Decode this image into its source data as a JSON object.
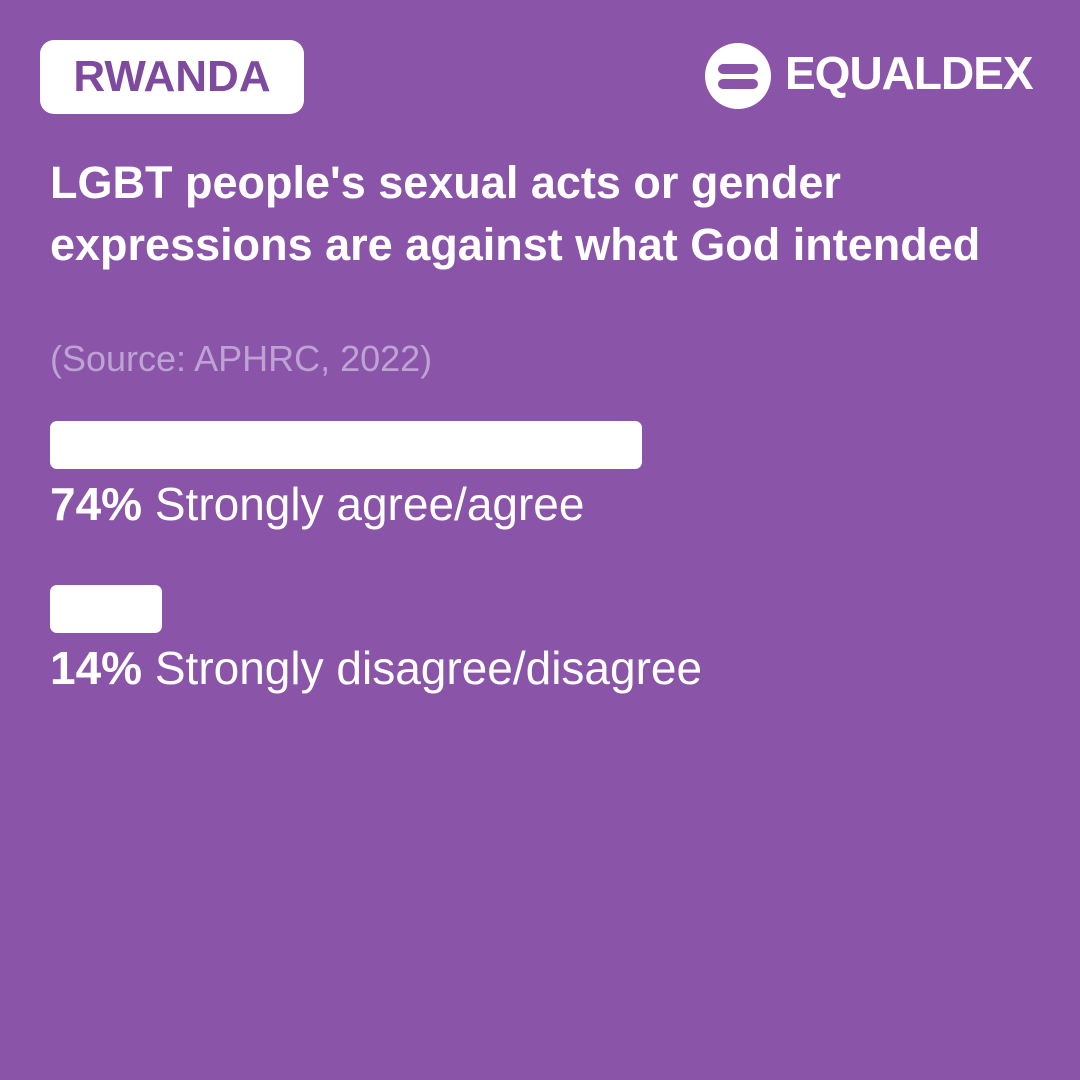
{
  "chart_data": {
    "type": "bar",
    "orientation": "horizontal",
    "country": "RWANDA",
    "brand": "EQUALDEX",
    "title": "LGBT people's sexual acts or gender expressions are against what God intended",
    "source": "(Source: APHRC, 2022)",
    "categories": [
      "Strongly agree/agree",
      "Strongly disagree/disagree"
    ],
    "values": [
      74,
      14
    ],
    "value_labels": [
      "74%",
      "14%"
    ],
    "color": "#ffffff",
    "xlim": [
      0,
      100
    ]
  }
}
